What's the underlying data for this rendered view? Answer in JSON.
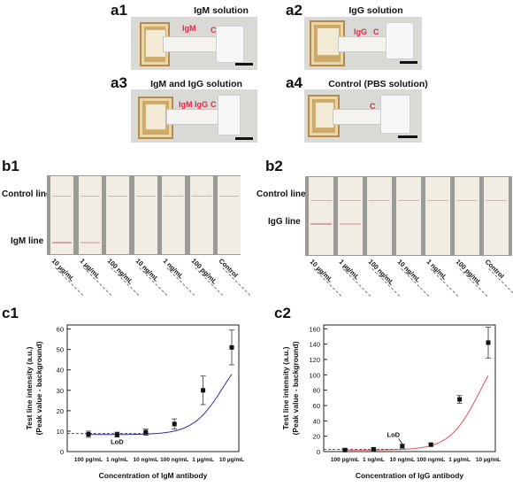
{
  "panels": {
    "a1": {
      "label": "a1",
      "title": "IgM solution",
      "marks": [
        "IgM",
        "C"
      ]
    },
    "a2": {
      "label": "a2",
      "title": "IgG solution",
      "marks": [
        "IgG",
        "C"
      ]
    },
    "a3": {
      "label": "a3",
      "title": "IgM and IgG solution",
      "marks": [
        "IgM",
        "IgG",
        "C"
      ]
    },
    "a4": {
      "label": "a4",
      "title": "Control (PBS solution)",
      "marks": [
        "C"
      ]
    },
    "b1": {
      "label": "b1",
      "control_line": "Control line",
      "test_line": "IgM line",
      "concentrations": [
        "10 µg/mL",
        "1 µg/mL",
        "100 ng/mL",
        "10 ng/mL",
        "1 ng/mL",
        "100 pg/mL",
        "Control"
      ]
    },
    "b2": {
      "label": "b2",
      "control_line": "Control line",
      "test_line": "IgG line",
      "concentrations": [
        "10 µg/mL",
        "1 µg/mL",
        "100 ng/mL",
        "10 ng/mL",
        "1 ng/mL",
        "100 pg/mL",
        "Control"
      ]
    }
  },
  "chart_data": [
    {
      "label": "c1",
      "type": "line",
      "xlabel": "Concentration of IgM antibody",
      "ylabel": [
        "Test line intensity (a.u.)",
        "(Peak value - background)"
      ],
      "categories": [
        "100 pg/mL",
        "1 ng/mL",
        "10 ng/mL",
        "100 ng/mL",
        "1 µg/mL",
        "10 µg/mL"
      ],
      "values": [
        8.5,
        8.3,
        9.5,
        13.5,
        30,
        51
      ],
      "errors": [
        1.5,
        1.2,
        1.5,
        2.5,
        7,
        8.5
      ],
      "yticks": [
        0,
        10,
        20,
        30,
        40,
        50,
        60
      ],
      "ylim": [
        0,
        62
      ],
      "lod_label": "LoD",
      "baseline": 8.8,
      "color": "#2b2f9e"
    },
    {
      "label": "c2",
      "type": "line",
      "xlabel": "Concentration of IgG antibody",
      "ylabel": [
        "Test line intensity (a.u.)",
        "(Peak value - background)"
      ],
      "categories": [
        "100 pg/mL",
        "1 ng/mL",
        "10 ng/mL",
        "100 ng/mL",
        "1 µg/mL",
        "10 µg/mL"
      ],
      "values": [
        2,
        3,
        7,
        9,
        68,
        142
      ],
      "errors": [
        1.5,
        1.5,
        2.5,
        2,
        5,
        20
      ],
      "yticks": [
        0,
        20,
        40,
        60,
        80,
        100,
        120,
        140,
        160
      ],
      "ylim": [
        0,
        165
      ],
      "lod_label": "LoD",
      "baseline": 3,
      "color": "#e0505a"
    }
  ]
}
